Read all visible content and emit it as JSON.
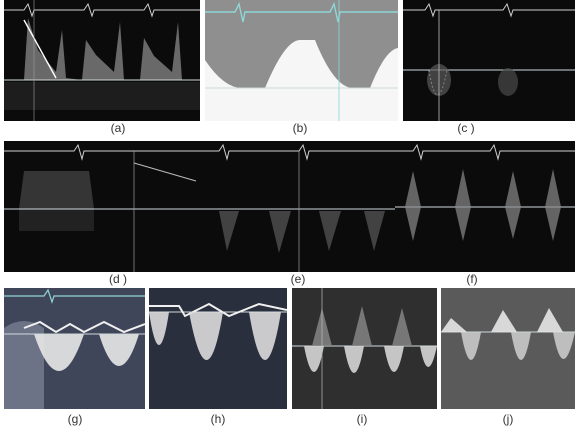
{
  "figure": {
    "captions": {
      "a": "(a)",
      "b": "(b)",
      "c": "(c )",
      "d": "(d )",
      "e": "(e)",
      "f": "(f)",
      "g": "(g)",
      "h": "(h)",
      "i": "(i)",
      "j": "(j)"
    },
    "colors": {
      "background": "#ffffff",
      "panel_dark": "#0b0b0b",
      "ecg_trace": "#8fd6d6",
      "baseline": "#cfd8dc",
      "spectral": "#e8e8e8"
    }
  }
}
